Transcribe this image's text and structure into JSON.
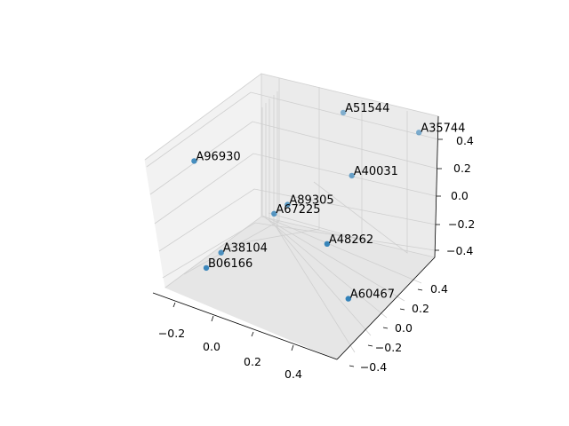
{
  "chart_data": {
    "type": "scatter",
    "projection": "3d",
    "title": "",
    "xlabel": "",
    "ylabel": "",
    "zlabel": "",
    "grid": true,
    "legend": "none",
    "x_ticks": [
      "−0.2",
      "0.0",
      "0.2",
      "0.4"
    ],
    "y_ticks": [
      "−0.4",
      "−0.2",
      "0.0",
      "0.2",
      "0.4"
    ],
    "z_ticks": [
      "−0.4",
      "−0.2",
      "0.0",
      "0.2",
      "0.4"
    ],
    "marker_color": "#1f77b4",
    "points": [
      {
        "label": "A51544",
        "x": 0.1,
        "y": 0.45,
        "z": 0.4
      },
      {
        "label": "A35744",
        "x": 0.48,
        "y": 0.38,
        "z": 0.43
      },
      {
        "label": "A96930",
        "x": -0.3,
        "y": -0.2,
        "z": 0.25
      },
      {
        "label": "A40031",
        "x": 0.25,
        "y": 0.2,
        "z": 0.15
      },
      {
        "label": "A89305",
        "x": 0.02,
        "y": 0.05,
        "z": -0.05
      },
      {
        "label": "A67225",
        "x": -0.02,
        "y": 0.0,
        "z": -0.1
      },
      {
        "label": "A48262",
        "x": 0.38,
        "y": -0.35,
        "z": 0.0
      },
      {
        "label": "A38104",
        "x": -0.22,
        "y": -0.1,
        "z": -0.38
      },
      {
        "label": "A60467",
        "x": 0.5,
        "y": -0.4,
        "z": -0.3
      },
      {
        "label": "B06166",
        "x": -0.2,
        "y": -0.3,
        "z": -0.38
      }
    ]
  }
}
